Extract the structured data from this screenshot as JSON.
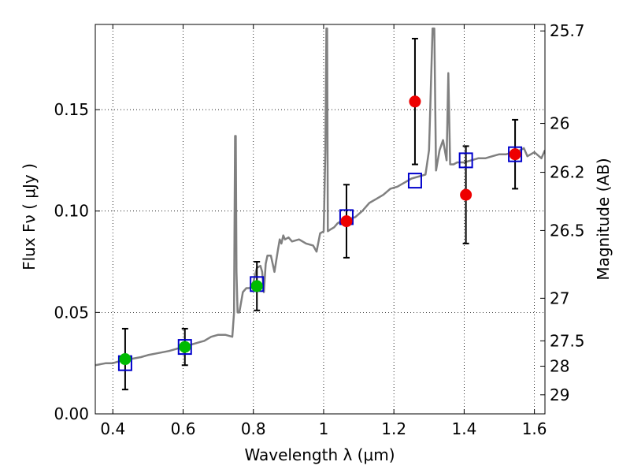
{
  "chart_data": {
    "type": "scatter",
    "xlabel": "Wavelength  λ (μm)",
    "ylabel": "Flux  Fν  ( μJy )",
    "y2label": "Magnitude (AB)",
    "xlim": [
      0.35,
      1.63
    ],
    "ylim": [
      0.0,
      0.192
    ],
    "grid": true,
    "xticks": [
      {
        "value": 0.4,
        "label": "0.4"
      },
      {
        "value": 0.6,
        "label": "0.6"
      },
      {
        "value": 0.8,
        "label": "0.8"
      },
      {
        "value": 1.0,
        "label": "1"
      },
      {
        "value": 1.2,
        "label": "1.2"
      },
      {
        "value": 1.4,
        "label": "1.4"
      },
      {
        "value": 1.6,
        "label": "1.6"
      }
    ],
    "yticks": [
      {
        "value": 0.0,
        "label": "0.00"
      },
      {
        "value": 0.05,
        "label": "0.05"
      },
      {
        "value": 0.1,
        "label": "0.10"
      },
      {
        "value": 0.15,
        "label": "0.15"
      }
    ],
    "y2ticks": [
      {
        "mag": "25.7",
        "flux": 0.1888
      },
      {
        "mag": "26",
        "flux": 0.1432
      },
      {
        "mag": "26.2",
        "flux": 0.1191
      },
      {
        "mag": "26.5",
        "flux": 0.0904
      },
      {
        "mag": "27",
        "flux": 0.057
      },
      {
        "mag": "27.5",
        "flux": 0.036
      },
      {
        "mag": "28",
        "flux": 0.0235
      },
      {
        "mag": "29",
        "flux": 0.0094
      }
    ],
    "model_spectrum": {
      "color": "#808080",
      "x": [
        0.35,
        0.38,
        0.4,
        0.42,
        0.45,
        0.48,
        0.5,
        0.53,
        0.56,
        0.58,
        0.6,
        0.62,
        0.64,
        0.66,
        0.68,
        0.7,
        0.72,
        0.74,
        0.745,
        0.748,
        0.75,
        0.752,
        0.755,
        0.76,
        0.77,
        0.78,
        0.79,
        0.8,
        0.81,
        0.82,
        0.825,
        0.83,
        0.835,
        0.84,
        0.85,
        0.86,
        0.87,
        0.875,
        0.88,
        0.885,
        0.89,
        0.9,
        0.91,
        0.93,
        0.95,
        0.97,
        0.98,
        0.99,
        1.0,
        1.005,
        1.008,
        1.01,
        1.012,
        1.02,
        1.03,
        1.04,
        1.05,
        1.07,
        1.09,
        1.11,
        1.13,
        1.15,
        1.17,
        1.19,
        1.21,
        1.23,
        1.25,
        1.27,
        1.29,
        1.3,
        1.31,
        1.315,
        1.32,
        1.325,
        1.33,
        1.34,
        1.35,
        1.355,
        1.36,
        1.37,
        1.38,
        1.4,
        1.42,
        1.44,
        1.46,
        1.48,
        1.5,
        1.52,
        1.54,
        1.56,
        1.57,
        1.58,
        1.6,
        1.62,
        1.63
      ],
      "y": [
        0.024,
        0.025,
        0.025,
        0.026,
        0.027,
        0.028,
        0.029,
        0.03,
        0.031,
        0.032,
        0.033,
        0.034,
        0.035,
        0.036,
        0.038,
        0.039,
        0.039,
        0.038,
        0.05,
        0.137,
        0.137,
        0.07,
        0.05,
        0.05,
        0.06,
        0.062,
        0.062,
        0.065,
        0.072,
        0.073,
        0.07,
        0.06,
        0.074,
        0.078,
        0.078,
        0.07,
        0.081,
        0.086,
        0.084,
        0.088,
        0.086,
        0.087,
        0.085,
        0.086,
        0.084,
        0.083,
        0.08,
        0.089,
        0.09,
        0.13,
        0.19,
        0.19,
        0.09,
        0.091,
        0.092,
        0.094,
        0.095,
        0.096,
        0.097,
        0.1,
        0.104,
        0.106,
        0.108,
        0.111,
        0.112,
        0.114,
        0.116,
        0.117,
        0.118,
        0.13,
        0.19,
        0.19,
        0.12,
        0.125,
        0.13,
        0.135,
        0.125,
        0.168,
        0.123,
        0.123,
        0.124,
        0.124,
        0.125,
        0.126,
        0.126,
        0.127,
        0.128,
        0.128,
        0.129,
        0.13,
        0.131,
        0.127,
        0.129,
        0.126,
        0.13
      ]
    },
    "model_bands": {
      "marker": "open-square",
      "color": "#0000cc",
      "x": [
        0.435,
        0.605,
        0.81,
        1.065,
        1.26,
        1.405,
        1.545
      ],
      "y": [
        0.025,
        0.033,
        0.064,
        0.097,
        0.115,
        0.125,
        0.128
      ]
    },
    "observed_green": {
      "marker": "filled-circle",
      "color": "#00bb00",
      "x": [
        0.435,
        0.605,
        0.81
      ],
      "y": [
        0.027,
        0.033,
        0.063
      ],
      "err": [
        0.015,
        0.009,
        0.012
      ]
    },
    "observed_red": {
      "marker": "filled-circle",
      "color": "#ee0000",
      "x": [
        1.065,
        1.26,
        1.405,
        1.545
      ],
      "y": [
        0.095,
        0.154,
        0.108,
        0.128
      ],
      "err": [
        0.018,
        0.031,
        0.024,
        0.017
      ]
    }
  }
}
